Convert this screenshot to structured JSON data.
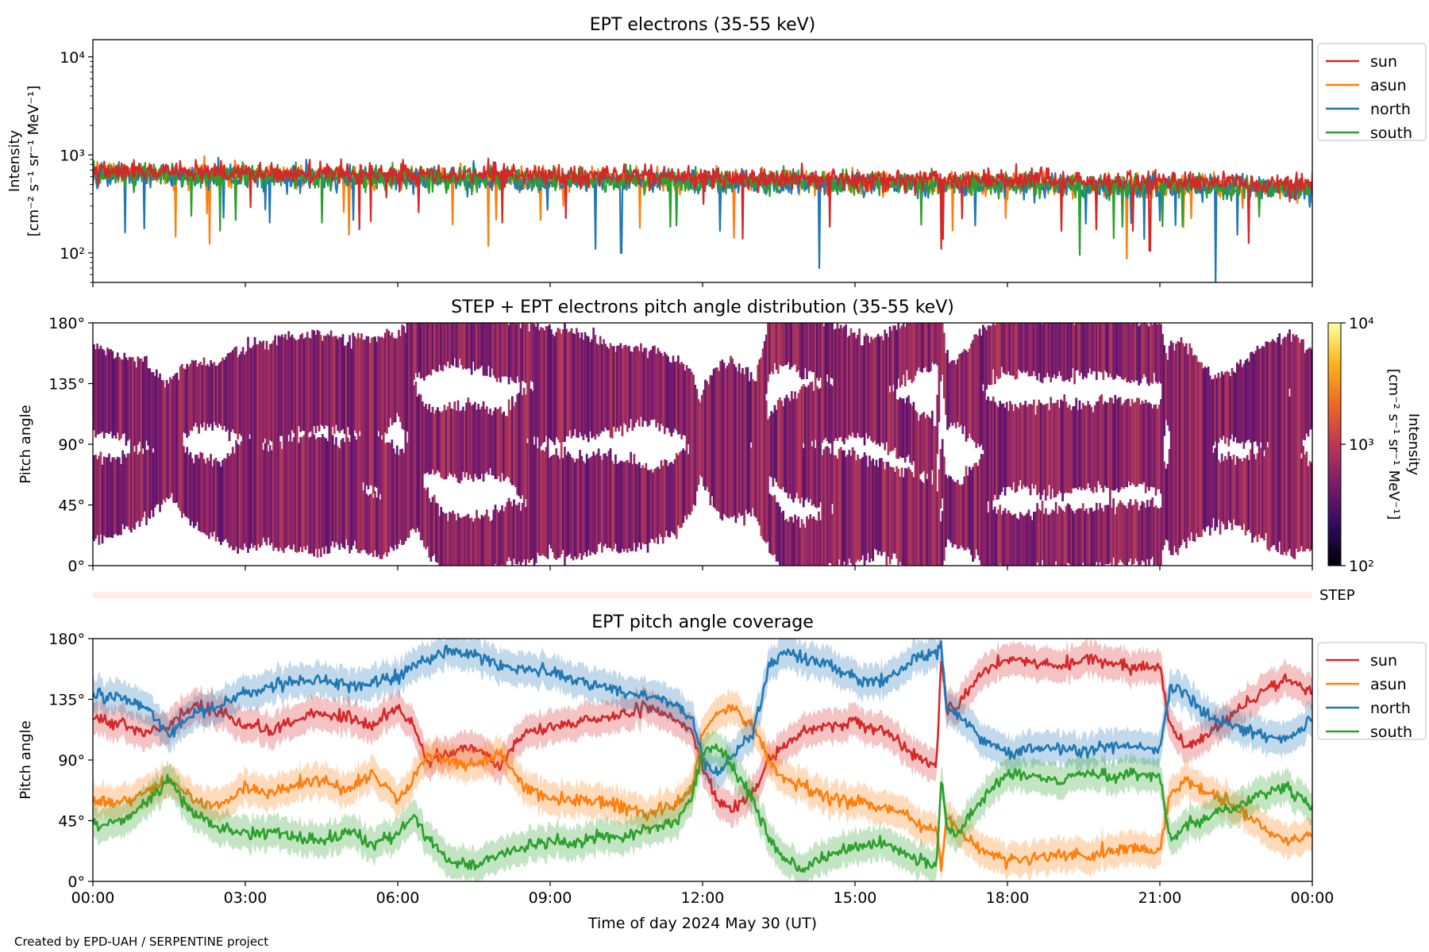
{
  "credit": "Created by EPD-UAH / SERPENTINE project",
  "colors": {
    "sun": "#d62728",
    "asun": "#ff7f0e",
    "north": "#1f77b4",
    "south": "#2ca02c"
  },
  "chart_data": [
    {
      "id": "intensity",
      "type": "line",
      "title": "EPT electrons (35-55 keV)",
      "ylabel": [
        "Intensity",
        "[cm⁻² s⁻¹ sr⁻¹ MeV⁻¹]"
      ],
      "yscale": "log",
      "ylim": [
        50,
        15000
      ],
      "yticks": [
        100,
        1000,
        10000
      ],
      "ytick_labels": [
        "10²",
        "10³",
        "10⁴"
      ],
      "xlim": [
        0,
        24
      ],
      "legend": "outside-right",
      "series": [
        {
          "name": "sun",
          "level": 700,
          "noise": 0.14,
          "trend": -0.006
        },
        {
          "name": "asun",
          "level": 650,
          "noise": 0.15,
          "trend": -0.006
        },
        {
          "name": "north",
          "level": 620,
          "noise": 0.16,
          "trend": -0.006
        },
        {
          "name": "south",
          "level": 640,
          "noise": 0.15,
          "trend": -0.006
        }
      ],
      "notable_dips": [
        [
          14.3,
          70
        ],
        [
          22.1,
          50
        ],
        [
          10.4,
          100
        ],
        [
          16.7,
          110
        ],
        [
          20.8,
          105
        ]
      ]
    },
    {
      "id": "pad",
      "type": "heatmap",
      "title": "STEP + EPT electrons pitch angle distribution (35-55 keV)",
      "ylabel": "Pitch angle",
      "ylim": [
        0,
        180
      ],
      "yticks": [
        0,
        45,
        90,
        135,
        180
      ],
      "ytick_labels": [
        "0°",
        "45°",
        "90°",
        "135°",
        "180°"
      ],
      "xlim": [
        0,
        24
      ],
      "colorbar": {
        "scale": "log",
        "range": [
          100,
          10000
        ],
        "ticks": [
          100,
          1000,
          10000
        ],
        "tick_labels": [
          "10²",
          "10³",
          "10⁴"
        ],
        "label": "Intensity",
        "label2": "[cm⁻² s⁻¹ sr⁻¹ MeV⁻¹]",
        "stops": [
          "#000004",
          "#320a5e",
          "#781c6d",
          "#bc3754",
          "#ed6925",
          "#fbb61a",
          "#fcffa4"
        ]
      },
      "step_label": "STEP"
    },
    {
      "id": "coverage",
      "type": "line",
      "title": "EPT pitch angle coverage",
      "ylabel": "Pitch angle",
      "ylim": [
        0,
        180
      ],
      "yticks": [
        0,
        45,
        90,
        135,
        180
      ],
      "ytick_labels": [
        "0°",
        "45°",
        "90°",
        "135°",
        "180°"
      ],
      "xlim": [
        0,
        24
      ],
      "xticks": [
        0,
        3,
        6,
        9,
        12,
        15,
        18,
        21,
        24
      ],
      "xtick_labels": [
        "00:00",
        "03:00",
        "06:00",
        "09:00",
        "12:00",
        "15:00",
        "18:00",
        "21:00",
        "00:00"
      ],
      "xlabel": "Time of day 2024 May 30 (UT)",
      "legend": "outside-right",
      "band_width": 12,
      "series": [
        {
          "name": "sun",
          "x": [
            0,
            0.5,
            1,
            1.5,
            2,
            2.5,
            3,
            3.5,
            4,
            4.5,
            5,
            5.5,
            6,
            6.3,
            6.6,
            7,
            7.5,
            8,
            8.5,
            9,
            9.5,
            10,
            10.5,
            11,
            11.5,
            11.8,
            12,
            12.3,
            12.6,
            13,
            13.3,
            13.6,
            14,
            14.5,
            15,
            15.5,
            16,
            16.3,
            16.6,
            16.7,
            16.8,
            17,
            17.5,
            18,
            18.5,
            19,
            19.5,
            20,
            20.5,
            21,
            21.2,
            21.5,
            22,
            22.5,
            23,
            23.5,
            24
          ],
          "y": [
            120,
            118,
            110,
            115,
            130,
            125,
            115,
            112,
            120,
            125,
            122,
            115,
            130,
            115,
            90,
            95,
            100,
            85,
            110,
            115,
            118,
            120,
            125,
            128,
            120,
            110,
            85,
            60,
            55,
            65,
            90,
            100,
            110,
            115,
            118,
            112,
            100,
            90,
            85,
            170,
            125,
            130,
            155,
            165,
            162,
            160,
            165,
            162,
            158,
            160,
            115,
            100,
            110,
            125,
            140,
            150,
            140
          ]
        },
        {
          "name": "asun",
          "x": [
            0,
            0.5,
            1,
            1.5,
            2,
            2.5,
            3,
            3.5,
            4,
            4.5,
            5,
            5.5,
            6,
            6.3,
            6.6,
            7,
            7.5,
            8,
            8.5,
            9,
            9.5,
            10,
            10.5,
            11,
            11.5,
            11.8,
            12,
            12.3,
            12.6,
            13,
            13.3,
            13.6,
            14,
            14.5,
            15,
            15.5,
            16,
            16.3,
            16.6,
            16.7,
            16.8,
            17,
            17.5,
            18,
            18.5,
            19,
            19.5,
            20,
            20.5,
            21,
            21.2,
            21.5,
            22,
            22.5,
            23,
            23.5,
            24
          ],
          "y": [
            60,
            58,
            65,
            75,
            60,
            55,
            70,
            65,
            72,
            75,
            68,
            80,
            60,
            75,
            95,
            90,
            85,
            95,
            70,
            62,
            58,
            60,
            55,
            50,
            58,
            70,
            110,
            125,
            130,
            115,
            90,
            75,
            70,
            62,
            60,
            55,
            50,
            42,
            38,
            10,
            45,
            40,
            22,
            15,
            18,
            20,
            18,
            22,
            25,
            22,
            65,
            75,
            65,
            55,
            40,
            30,
            35
          ]
        },
        {
          "name": "north",
          "x": [
            0,
            0.5,
            1,
            1.5,
            2,
            2.5,
            3,
            3.5,
            4,
            4.5,
            5,
            5.5,
            6,
            6.3,
            6.6,
            7,
            7.5,
            8,
            8.5,
            9,
            9.5,
            10,
            10.5,
            11,
            11.5,
            11.8,
            12,
            12.3,
            12.6,
            13,
            13.3,
            13.6,
            14,
            14.5,
            15,
            15.5,
            16,
            16.3,
            16.6,
            16.7,
            16.8,
            17,
            17.5,
            18,
            18.5,
            19,
            19.5,
            20,
            20.5,
            21,
            21.2,
            21.5,
            22,
            22.5,
            23,
            23.5,
            24
          ],
          "y": [
            140,
            135,
            130,
            110,
            125,
            130,
            140,
            145,
            148,
            150,
            145,
            148,
            150,
            160,
            165,
            170,
            168,
            160,
            158,
            155,
            150,
            145,
            140,
            138,
            130,
            120,
            90,
            80,
            95,
            110,
            160,
            170,
            165,
            160,
            150,
            148,
            160,
            168,
            170,
            175,
            130,
            125,
            105,
            95,
            98,
            100,
            96,
            100,
            100,
            98,
            145,
            140,
            120,
            115,
            110,
            105,
            120
          ]
        },
        {
          "name": "south",
          "x": [
            0,
            0.5,
            1,
            1.5,
            2,
            2.5,
            3,
            3.5,
            4,
            4.5,
            5,
            5.5,
            6,
            6.3,
            6.6,
            7,
            7.5,
            8,
            8.5,
            9,
            9.5,
            10,
            10.5,
            11,
            11.5,
            11.8,
            12,
            12.3,
            12.6,
            13,
            13.3,
            13.6,
            14,
            14.5,
            15,
            15.5,
            16,
            16.3,
            16.6,
            16.7,
            16.8,
            17,
            17.5,
            18,
            18.5,
            19,
            19.5,
            20,
            20.5,
            21,
            21.2,
            21.5,
            22,
            22.5,
            23,
            23.5,
            24
          ],
          "y": [
            40,
            45,
            55,
            75,
            50,
            40,
            35,
            38,
            32,
            30,
            38,
            28,
            35,
            50,
            30,
            15,
            12,
            20,
            25,
            30,
            28,
            35,
            32,
            40,
            45,
            65,
            95,
            100,
            85,
            60,
            35,
            15,
            10,
            20,
            25,
            30,
            20,
            15,
            10,
            80,
            40,
            35,
            60,
            80,
            78,
            75,
            80,
            78,
            80,
            78,
            30,
            40,
            50,
            55,
            65,
            70,
            55
          ]
        }
      ]
    }
  ]
}
